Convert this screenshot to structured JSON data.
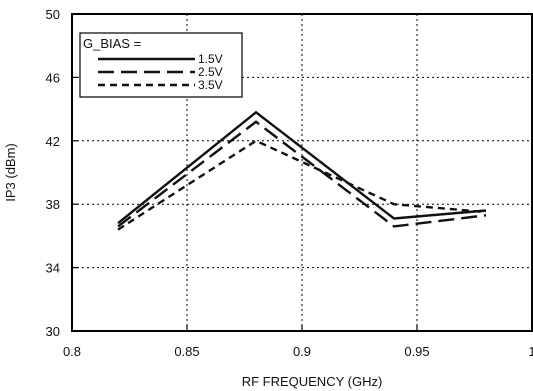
{
  "chart_data": {
    "type": "line",
    "title": "",
    "xlabel": "RF FREQUENCY (GHz)",
    "ylabel": "IP3 (dBm)",
    "xlim": [
      0.8,
      1.0
    ],
    "ylim": [
      30,
      50
    ],
    "x_ticks": [
      "0.8",
      "0.85",
      "0.9",
      "0.95",
      "1"
    ],
    "y_ticks": [
      "30",
      "34",
      "38",
      "42",
      "46",
      "50"
    ],
    "grid": true,
    "legend": {
      "title": "G_BIAS =",
      "placement": "top-left"
    },
    "series": [
      {
        "name": "1.5V",
        "style": "solid",
        "x": [
          0.82,
          0.88,
          0.94,
          0.98
        ],
        "y": [
          36.8,
          43.8,
          37.1,
          37.6
        ]
      },
      {
        "name": "2.5V",
        "style": "long-dash",
        "x": [
          0.82,
          0.88,
          0.94,
          0.98
        ],
        "y": [
          36.6,
          43.2,
          36.6,
          37.3
        ]
      },
      {
        "name": "3.5V",
        "style": "short-dash",
        "x": [
          0.82,
          0.88,
          0.94,
          0.98
        ],
        "y": [
          36.4,
          42.0,
          38.0,
          37.5
        ]
      }
    ]
  }
}
